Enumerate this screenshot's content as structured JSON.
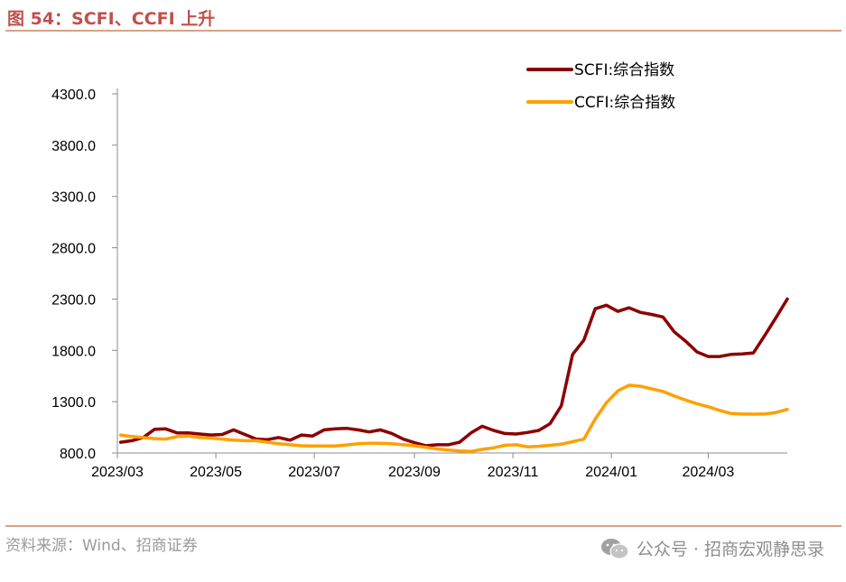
{
  "figure": {
    "title": "图 54：SCFI、CCFI 上升",
    "source": "资料来源：Wind、招商证券",
    "watermark": "公众号 · 招商宏观静思录"
  },
  "chart_data": {
    "type": "line",
    "y_ticks": [
      "800.0",
      "1300.0",
      "1800.0",
      "2300.0",
      "2800.0",
      "3300.0",
      "3800.0",
      "4300.0"
    ],
    "ylim": [
      800,
      4300
    ],
    "x_ticks": [
      "2023/03",
      "2023/05",
      "2023/07",
      "2023/09",
      "2023/11",
      "2024/01",
      "2024/03"
    ],
    "x_tick_dates": [
      "2023-03-01",
      "2023-05-01",
      "2023-07-01",
      "2023-09-01",
      "2023-11-01",
      "2024-01-01",
      "2024-03-01"
    ],
    "xlim": [
      "2023-03-01",
      "2024-04-19"
    ],
    "legend_position": "top-right",
    "series": [
      {
        "name": "SCFI:综合指数",
        "color": "#8b0000",
        "x": [
          "2023-03-03",
          "2023-03-10",
          "2023-03-17",
          "2023-03-24",
          "2023-03-31",
          "2023-04-07",
          "2023-04-14",
          "2023-04-21",
          "2023-04-28",
          "2023-05-05",
          "2023-05-12",
          "2023-05-19",
          "2023-05-26",
          "2023-06-02",
          "2023-06-09",
          "2023-06-16",
          "2023-06-23",
          "2023-06-30",
          "2023-07-07",
          "2023-07-14",
          "2023-07-21",
          "2023-07-28",
          "2023-08-04",
          "2023-08-11",
          "2023-08-18",
          "2023-08-25",
          "2023-09-01",
          "2023-09-08",
          "2023-09-15",
          "2023-09-22",
          "2023-09-29",
          "2023-10-06",
          "2023-10-13",
          "2023-10-20",
          "2023-10-27",
          "2023-11-03",
          "2023-11-10",
          "2023-11-17",
          "2023-11-24",
          "2023-12-01",
          "2023-12-08",
          "2023-12-15",
          "2023-12-22",
          "2023-12-29",
          "2024-01-05",
          "2024-01-12",
          "2024-01-19",
          "2024-01-26",
          "2024-02-02",
          "2024-02-09",
          "2024-02-16",
          "2024-02-23",
          "2024-03-01",
          "2024-03-08",
          "2024-03-15",
          "2024-03-22",
          "2024-03-29",
          "2024-04-05",
          "2024-04-12",
          "2024-04-19"
        ],
        "values": [
          905,
          920,
          950,
          1030,
          1035,
          995,
          995,
          985,
          975,
          980,
          1025,
          980,
          935,
          930,
          950,
          925,
          975,
          965,
          1025,
          1035,
          1040,
          1025,
          1005,
          1025,
          990,
          935,
          900,
          870,
          880,
          880,
          905,
          995,
          1060,
          1020,
          990,
          985,
          1000,
          1020,
          1085,
          1260,
          1760,
          1900,
          2205,
          2240,
          2180,
          2215,
          2170,
          2150,
          2125,
          1980,
          1890,
          1785,
          1740,
          1740,
          1760,
          1765,
          1775,
          1945,
          2120,
          2300
        ]
      },
      {
        "name": "CCFI:综合指数",
        "color": "#ffa000",
        "x": [
          "2023-03-03",
          "2023-03-10",
          "2023-03-17",
          "2023-03-24",
          "2023-03-31",
          "2023-04-07",
          "2023-04-14",
          "2023-04-21",
          "2023-04-28",
          "2023-05-05",
          "2023-05-12",
          "2023-05-19",
          "2023-05-26",
          "2023-06-02",
          "2023-06-09",
          "2023-06-16",
          "2023-06-23",
          "2023-06-30",
          "2023-07-07",
          "2023-07-14",
          "2023-07-21",
          "2023-07-28",
          "2023-08-04",
          "2023-08-11",
          "2023-08-18",
          "2023-08-25",
          "2023-09-01",
          "2023-09-08",
          "2023-09-15",
          "2023-09-22",
          "2023-09-29",
          "2023-10-06",
          "2023-10-13",
          "2023-10-20",
          "2023-10-27",
          "2023-11-03",
          "2023-11-10",
          "2023-11-17",
          "2023-11-24",
          "2023-12-01",
          "2023-12-08",
          "2023-12-15",
          "2023-12-22",
          "2023-12-29",
          "2024-01-05",
          "2024-01-12",
          "2024-01-19",
          "2024-01-26",
          "2024-02-02",
          "2024-02-09",
          "2024-02-16",
          "2024-02-23",
          "2024-03-01",
          "2024-03-08",
          "2024-03-15",
          "2024-03-22",
          "2024-03-29",
          "2024-04-05",
          "2024-04-12",
          "2024-04-19"
        ],
        "values": [
          975,
          960,
          950,
          940,
          935,
          960,
          965,
          950,
          945,
          935,
          925,
          920,
          920,
          905,
          890,
          880,
          870,
          868,
          868,
          868,
          878,
          890,
          895,
          895,
          890,
          880,
          870,
          855,
          840,
          828,
          820,
          815,
          835,
          850,
          875,
          880,
          860,
          865,
          875,
          885,
          910,
          935,
          1130,
          1290,
          1405,
          1460,
          1450,
          1425,
          1400,
          1355,
          1315,
          1280,
          1250,
          1215,
          1185,
          1180,
          1178,
          1180,
          1195,
          1225
        ]
      }
    ]
  }
}
